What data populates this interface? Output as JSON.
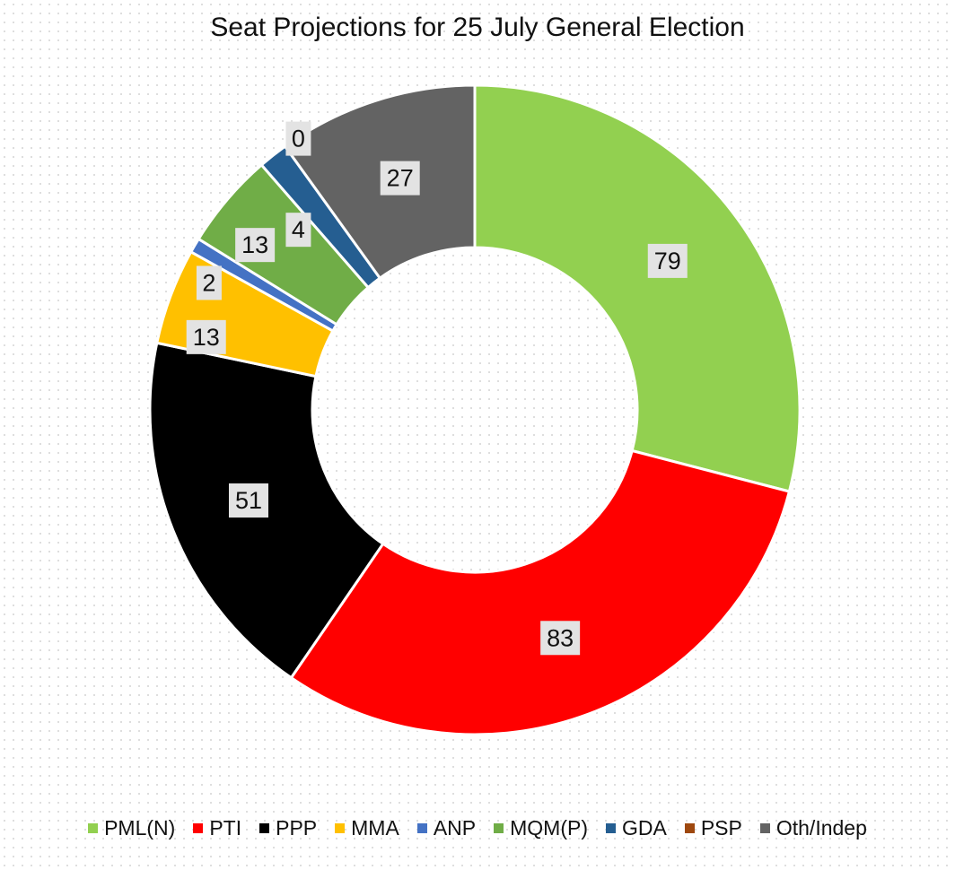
{
  "chart_data": {
    "type": "donut",
    "title": "Seat Projections for 25 July General Election",
    "categories": [
      "PML(N)",
      "PTI",
      "PPP",
      "MMA",
      "ANP",
      "MQM(P)",
      "GDA",
      "PSP",
      "Oth/Indep"
    ],
    "values": [
      79,
      83,
      51,
      13,
      2,
      13,
      4,
      0,
      27
    ],
    "colors": [
      "#92d050",
      "#ff0000",
      "#000000",
      "#ffc000",
      "#4472c4",
      "#70ad47",
      "#255e91",
      "#9e480e",
      "#636363"
    ],
    "legend_position": "bottom",
    "data_labels": true
  }
}
